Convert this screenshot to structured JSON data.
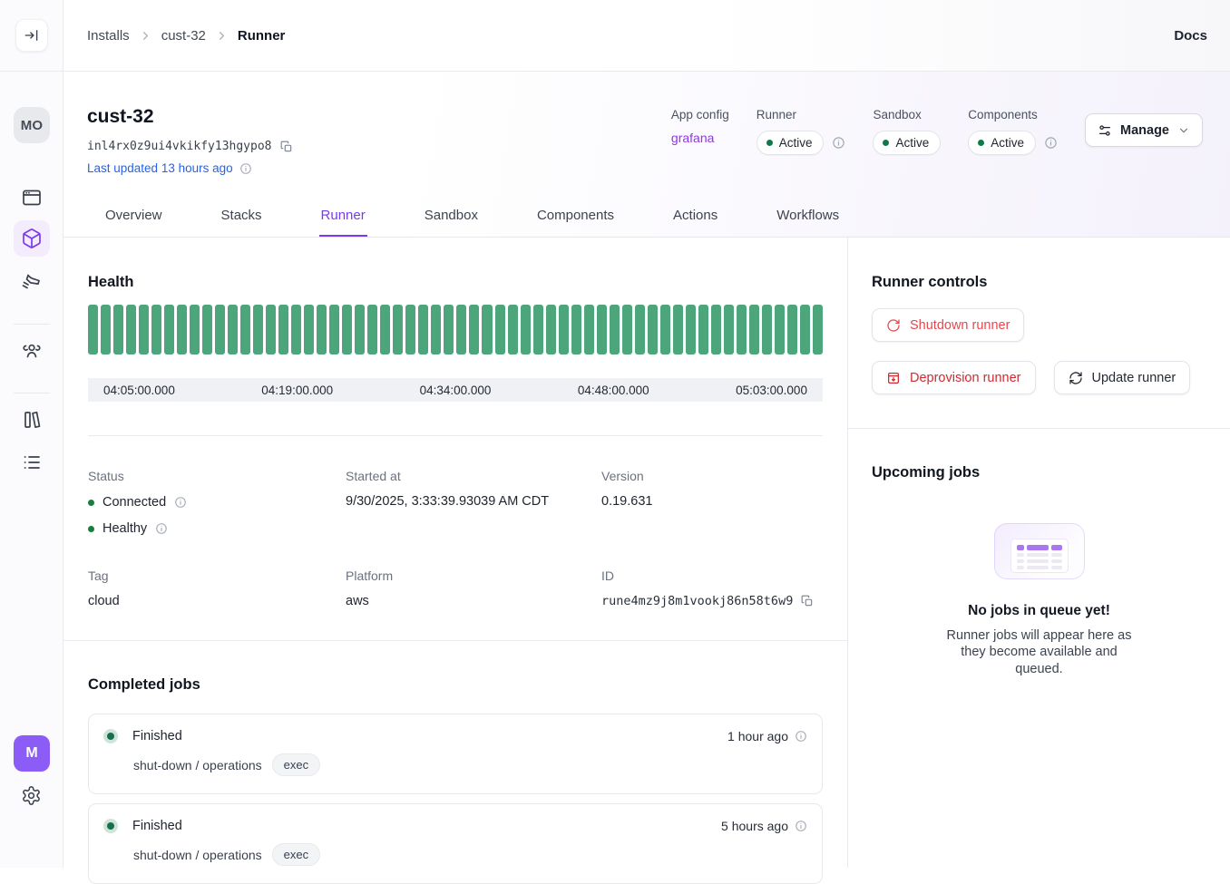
{
  "topbar": {
    "breadcrumb": [
      {
        "label": "Installs"
      },
      {
        "label": "cust-32"
      },
      {
        "label": "Runner"
      }
    ],
    "docs_label": "Docs"
  },
  "sidebar": {
    "avatar_top": "MO",
    "avatar_bottom": "M"
  },
  "header": {
    "title": "cust-32",
    "install_id": "inl4rx0z9ui4vkikfy13hgypo8",
    "last_updated": "Last updated 13 hours ago",
    "app_config": {
      "label": "App config",
      "value": "grafana"
    },
    "runner": {
      "label": "Runner",
      "status": "Active"
    },
    "sandbox": {
      "label": "Sandbox",
      "status": "Active"
    },
    "components": {
      "label": "Components",
      "status": "Active"
    },
    "manage_label": "Manage"
  },
  "tabs": {
    "items": [
      {
        "label": "Overview"
      },
      {
        "label": "Stacks"
      },
      {
        "label": "Runner",
        "active": true
      },
      {
        "label": "Sandbox"
      },
      {
        "label": "Components"
      },
      {
        "label": "Actions"
      },
      {
        "label": "Workflows"
      }
    ]
  },
  "health": {
    "title": "Health",
    "bar_count": 58,
    "bar_color": "#4da57c",
    "time_labels": [
      "04:05:00.000",
      "04:19:00.000",
      "04:34:00.000",
      "04:48:00.000",
      "05:03:00.000"
    ]
  },
  "details": {
    "status": {
      "label": "Status",
      "items": [
        {
          "text": "Connected"
        },
        {
          "text": "Healthy"
        }
      ]
    },
    "started_at": {
      "label": "Started at",
      "value": "9/30/2025, 3:33:39.93039 AM CDT"
    },
    "version": {
      "label": "Version",
      "value": "0.19.631"
    },
    "tag": {
      "label": "Tag",
      "value": "cloud"
    },
    "platform": {
      "label": "Platform",
      "value": "aws"
    },
    "id": {
      "label": "ID",
      "value": "rune4mz9j8m1vookj86n58t6w9"
    }
  },
  "completed_jobs": {
    "title": "Completed jobs",
    "jobs": [
      {
        "status": "Finished",
        "path": "shut-down /  operations",
        "badge": "exec",
        "time": "1 hour ago"
      },
      {
        "status": "Finished",
        "path": "shut-down /  operations",
        "badge": "exec",
        "time": "5 hours ago"
      }
    ]
  },
  "runner_controls": {
    "title": "Runner controls",
    "shutdown_label": "Shutdown runner",
    "deprovision_label": "Deprovision runner",
    "update_label": "Update runner"
  },
  "upcoming_jobs": {
    "title": "Upcoming jobs",
    "empty_title": "No jobs in queue yet!",
    "empty_message": "Runner jobs will appear here as they become available and queued."
  },
  "colors": {
    "accent_purple": "#7c3aed",
    "link_purple": "#9333ea",
    "link_blue": "#2563eb",
    "health_green": "#4da57c",
    "status_green": "#15803d",
    "shutdown_red": "#e5484d",
    "deprovision_red": "#cd2b31"
  }
}
